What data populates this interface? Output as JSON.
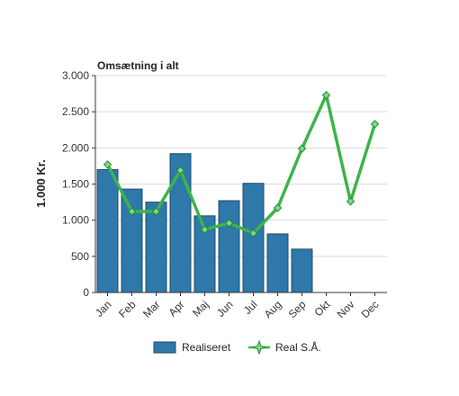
{
  "chart_data": {
    "type": "bar",
    "title": "Omsætning i alt",
    "xlabel": "",
    "ylabel": "1.000 Kr.",
    "ylim": [
      0,
      3000
    ],
    "yticks": [
      0,
      500,
      1000,
      1500,
      2000,
      2500,
      3000
    ],
    "ytick_labels": [
      "0",
      "500",
      "1.000",
      "1.500",
      "2.000",
      "2.500",
      "3.000"
    ],
    "categories": [
      "Jan",
      "Feb",
      "Mar",
      "Apr",
      "Maj",
      "Jun",
      "Jul",
      "Aug",
      "Sep",
      "Okt",
      "Nov",
      "Dec"
    ],
    "grid": true,
    "legend_position": "bottom",
    "series": [
      {
        "name": "Realiseret",
        "type": "bar",
        "color": "#2e78aa",
        "values": [
          1700,
          1430,
          1250,
          1920,
          1060,
          1270,
          1510,
          810,
          600,
          null,
          null,
          null
        ]
      },
      {
        "name": "Real S.Å.",
        "type": "line",
        "color": "#3db34a",
        "marker": "diamond",
        "values": [
          1770,
          1120,
          1120,
          1690,
          870,
          960,
          820,
          1170,
          1990,
          2730,
          1260,
          2330
        ]
      }
    ]
  }
}
